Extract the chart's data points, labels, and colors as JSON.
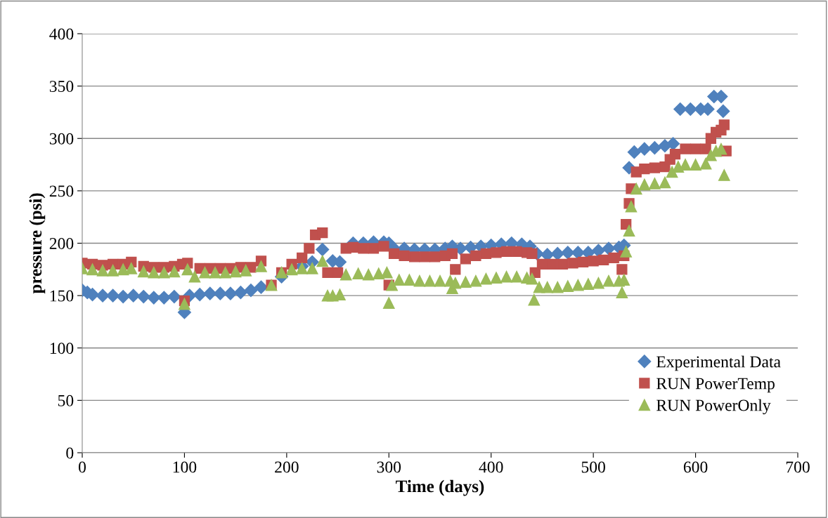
{
  "chart_data": {
    "type": "scatter",
    "xlabel": "Time (days)",
    "ylabel": "pressure (psi)",
    "xlim": [
      0,
      700
    ],
    "xticks": [
      0,
      100,
      200,
      300,
      400,
      500,
      600,
      700
    ],
    "ylim": [
      0,
      400
    ],
    "yticks": [
      0,
      50,
      100,
      150,
      200,
      250,
      300,
      350,
      400
    ],
    "grid": "y",
    "legend": "bottom right",
    "series": [
      {
        "name": "Experimental Data",
        "color": "#4f81bd",
        "marker": "diamond",
        "x": [
          0,
          5,
          10,
          20,
          30,
          40,
          50,
          60,
          70,
          80,
          90,
          100,
          105,
          115,
          125,
          135,
          145,
          155,
          165,
          175,
          185,
          195,
          205,
          215,
          225,
          235,
          245,
          252,
          258,
          265,
          275,
          285,
          295,
          300,
          305,
          315,
          325,
          335,
          345,
          355,
          362,
          370,
          380,
          390,
          400,
          410,
          420,
          430,
          438,
          445,
          455,
          465,
          475,
          485,
          495,
          505,
          515,
          525,
          530,
          535,
          540,
          550,
          560,
          570,
          578,
          585,
          595,
          605,
          612,
          618,
          625,
          627
        ],
        "values": [
          155,
          153,
          151,
          150,
          150,
          149,
          150,
          149,
          148,
          148,
          149,
          134,
          150,
          151,
          152,
          152,
          152,
          153,
          155,
          158,
          null,
          168,
          null,
          178,
          182,
          194,
          183,
          182,
          null,
          200,
          200,
          201,
          201,
          200,
          195,
          195,
          194,
          194,
          194,
          195,
          197,
          195,
          196,
          197,
          198,
          199,
          200,
          199,
          197,
          190,
          189,
          190,
          191,
          191,
          191,
          193,
          195,
          196,
          198,
          272,
          287,
          290,
          291,
          293,
          295,
          328,
          328,
          328,
          328,
          340,
          340,
          326
        ]
      },
      {
        "name": "RUN PowerTemp",
        "color": "#c0504d",
        "marker": "square",
        "x": [
          0,
          10,
          20,
          30,
          40,
          48,
          60,
          70,
          80,
          90,
          98,
          100,
          103,
          115,
          125,
          135,
          145,
          155,
          165,
          175,
          185,
          195,
          205,
          215,
          222,
          228,
          235,
          240,
          250,
          258,
          265,
          275,
          285,
          295,
          300,
          305,
          315,
          325,
          335,
          345,
          355,
          362,
          365,
          375,
          385,
          395,
          405,
          415,
          425,
          435,
          440,
          443,
          450,
          460,
          470,
          480,
          490,
          500,
          510,
          520,
          528,
          530,
          532,
          535,
          537,
          542,
          550,
          560,
          570,
          575,
          580,
          590,
          600,
          610,
          615,
          620,
          625,
          628,
          630
        ],
        "values": [
          181,
          180,
          179,
          180,
          180,
          182,
          178,
          177,
          177,
          178,
          180,
          145,
          181,
          176,
          176,
          176,
          176,
          177,
          177,
          183,
          160,
          172,
          180,
          186,
          195,
          208,
          210,
          172,
          172,
          195,
          196,
          195,
          195,
          197,
          160,
          190,
          188,
          187,
          187,
          187,
          188,
          190,
          175,
          185,
          188,
          190,
          191,
          192,
          192,
          191,
          190,
          172,
          180,
          180,
          180,
          181,
          182,
          183,
          184,
          186,
          175,
          188,
          218,
          238,
          252,
          268,
          271,
          272,
          273,
          280,
          285,
          290,
          290,
          290,
          300,
          306,
          308,
          313,
          288
        ]
      },
      {
        "name": "RUN PowerOnly",
        "color": "#9bbb59",
        "marker": "triangle",
        "x": [
          0,
          10,
          20,
          30,
          40,
          48,
          60,
          70,
          80,
          90,
          100,
          103,
          110,
          120,
          130,
          140,
          150,
          160,
          175,
          185,
          195,
          205,
          215,
          225,
          235,
          240,
          245,
          252,
          258,
          270,
          280,
          290,
          298,
          300,
          303,
          310,
          320,
          330,
          340,
          350,
          360,
          362,
          365,
          375,
          385,
          395,
          405,
          415,
          425,
          435,
          440,
          442,
          447,
          455,
          465,
          475,
          485,
          495,
          505,
          515,
          525,
          528,
          530,
          532,
          535,
          537,
          542,
          550,
          560,
          570,
          577,
          583,
          590,
          600,
          610,
          615,
          620,
          625,
          628
        ],
        "values": [
          176,
          175,
          174,
          174,
          175,
          176,
          173,
          172,
          172,
          173,
          142,
          175,
          168,
          172,
          172,
          172,
          173,
          174,
          178,
          160,
          172,
          175,
          176,
          176,
          183,
          150,
          150,
          151,
          170,
          171,
          170,
          171,
          172,
          143,
          160,
          165,
          165,
          164,
          164,
          164,
          164,
          157,
          162,
          163,
          164,
          166,
          167,
          168,
          168,
          167,
          166,
          146,
          158,
          158,
          158,
          159,
          160,
          161,
          162,
          164,
          164,
          153,
          165,
          192,
          212,
          235,
          252,
          256,
          257,
          258,
          268,
          273,
          275,
          275,
          276,
          284,
          288,
          290,
          265
        ]
      }
    ]
  }
}
